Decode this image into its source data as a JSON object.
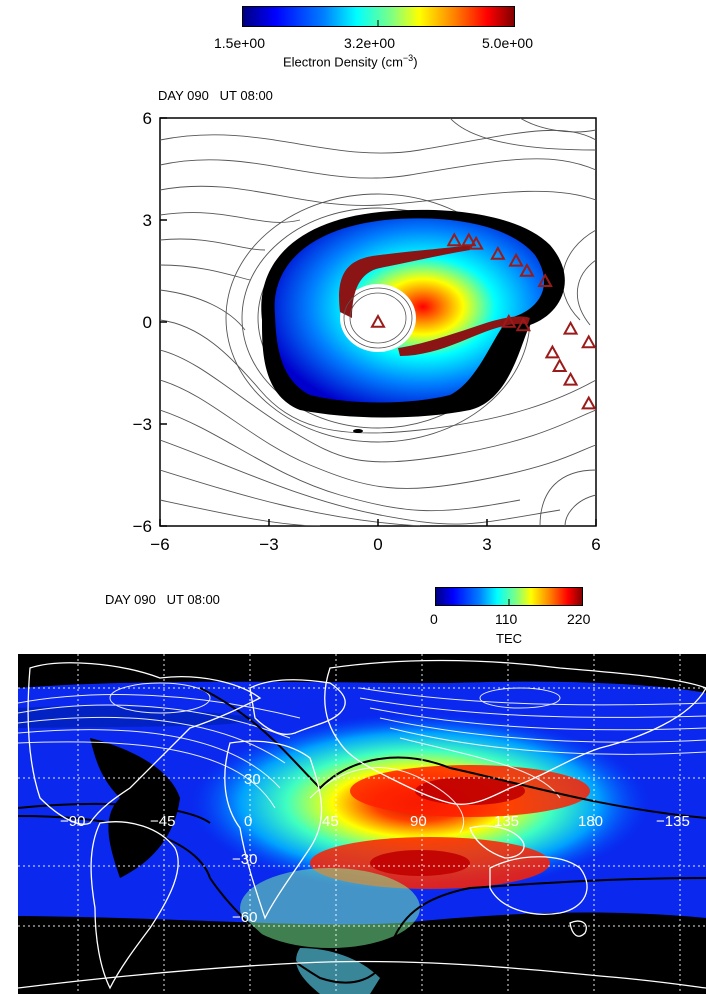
{
  "top_colorbar": {
    "tick_labels": [
      "1.5e+00",
      "3.2e+00",
      "5.0e+00"
    ],
    "title": "Electron Density (cm",
    "title_exp": "−3",
    "title_close": ")"
  },
  "bottom_colorbar": {
    "tick_labels": [
      "0",
      "110",
      "220"
    ],
    "title": "TEC"
  },
  "colors": {
    "colormap": [
      "#00007f",
      "#0000ff",
      "#0080ff",
      "#00ffff",
      "#80ff80",
      "#ffff00",
      "#ff8000",
      "#ff0000",
      "#7f0000"
    ],
    "triangle": "#9b1b1b",
    "plasmasphere_body": "#8b1414",
    "map_background": "#000000",
    "contours": "#555555"
  },
  "chart_data": [
    {
      "type": "heatmap",
      "panel": "plasmasphere",
      "header": "DAY 090   UT 08:00",
      "xlim": [
        -6,
        6
      ],
      "ylim": [
        -6,
        6
      ],
      "xticks": [
        "−6",
        "−3",
        "0",
        "3",
        "6"
      ],
      "yticks": [
        "−6",
        "−3",
        "0",
        "3",
        "6"
      ],
      "colorbar_range": [
        1.5,
        5.0
      ],
      "triangles": [
        {
          "x": 0.0,
          "y": 0.0
        },
        {
          "x": 2.1,
          "y": 2.4
        },
        {
          "x": 2.5,
          "y": 2.4
        },
        {
          "x": 2.7,
          "y": 2.3
        },
        {
          "x": 3.3,
          "y": 2.0
        },
        {
          "x": 3.8,
          "y": 1.8
        },
        {
          "x": 4.1,
          "y": 1.5
        },
        {
          "x": 4.6,
          "y": 1.2
        },
        {
          "x": 5.3,
          "y": -0.2
        },
        {
          "x": 5.8,
          "y": -0.6
        },
        {
          "x": 4.8,
          "y": -0.9
        },
        {
          "x": 5.0,
          "y": -1.3
        },
        {
          "x": 5.3,
          "y": -1.7
        },
        {
          "x": 5.8,
          "y": -2.4
        },
        {
          "x": 3.6,
          "y": 0.0
        },
        {
          "x": 4.0,
          "y": -0.1
        }
      ]
    },
    {
      "type": "heatmap",
      "panel": "global TEC map",
      "header": "DAY 090   UT 08:00",
      "colorbar_range": [
        0,
        220
      ],
      "lon_labels": [
        "−90",
        "−45",
        "0",
        "45",
        "90",
        "135",
        "180",
        "−135"
      ],
      "lat_labels": [
        "30",
        "−30",
        "−60"
      ]
    }
  ]
}
